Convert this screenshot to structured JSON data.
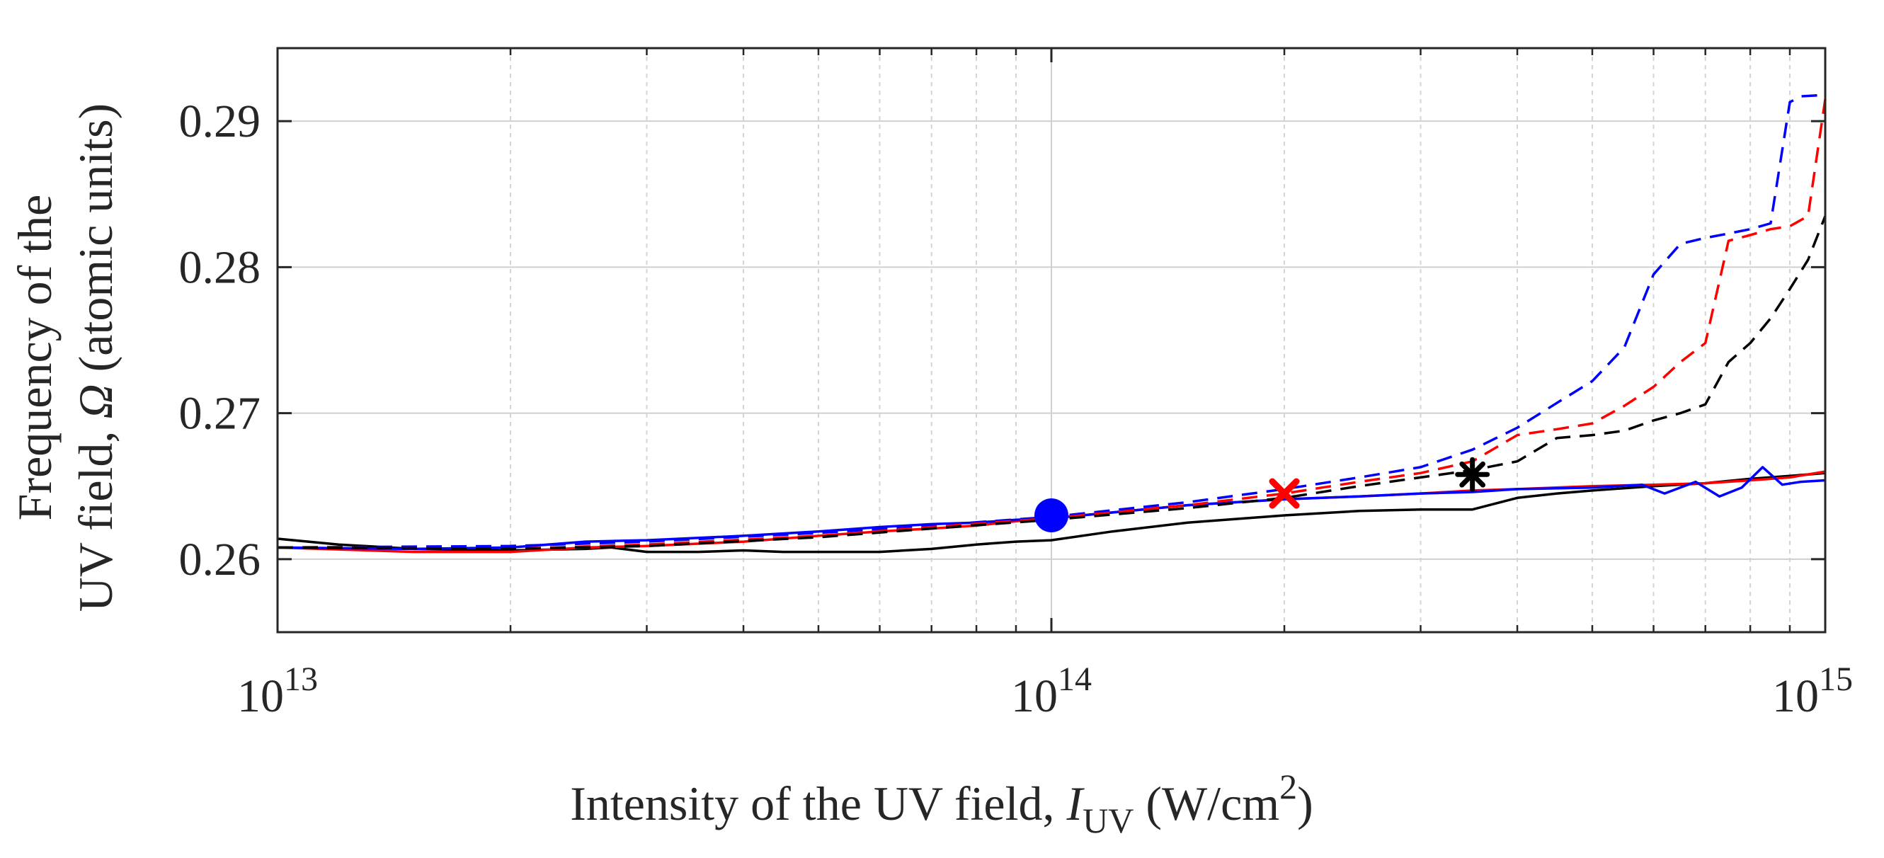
{
  "chart_data": {
    "type": "line",
    "x_scale": "log",
    "xlim": [
      10000000000000.0,
      1000000000000000.0
    ],
    "ylim": [
      0.255,
      0.295
    ],
    "grid": true,
    "xlabel": {
      "prefix": "Intensity of the UV field, ",
      "italic": "I",
      "subscript": "UV",
      "suffix_open": " (W/cm",
      "superscript": "2",
      "suffix_close": ")"
    },
    "ylabel": {
      "line1": "Frequency of the",
      "line2_prefix": "UV field, ",
      "symbol": "Ω",
      "line2_suffix": " (atomic units)"
    },
    "x_ticks": [
      {
        "value": 10000000000000.0,
        "base": "10",
        "exp": "13"
      },
      {
        "value": 100000000000000.0,
        "base": "10",
        "exp": "14"
      },
      {
        "value": 1000000000000000.0,
        "base": "10",
        "exp": "15"
      }
    ],
    "y_ticks": [
      {
        "value": 0.26,
        "label": "0.26"
      },
      {
        "value": 0.27,
        "label": "0.27"
      },
      {
        "value": 0.28,
        "label": "0.28"
      },
      {
        "value": 0.29,
        "label": "0.29"
      }
    ],
    "series": [
      {
        "name": "black-solid",
        "color": "#000000",
        "dash": "solid",
        "x": [
          10000000000000.0,
          12000000000000.0,
          15000000000000.0,
          20000000000000.0,
          25000000000000.0,
          27000000000000.0,
          30000000000000.0,
          35000000000000.0,
          40000000000000.0,
          45000000000000.0,
          50000000000000.0,
          60000000000000.0,
          70000000000000.0,
          80000000000000.0,
          90000000000000.0,
          100000000000000.0,
          120000000000000.0,
          150000000000000.0,
          200000000000000.0,
          250000000000000.0,
          300000000000000.0,
          350000000000000.0,
          400000000000000.0,
          450000000000000.0,
          500000000000000.0,
          600000000000000.0,
          700000000000000.0,
          800000000000000.0,
          900000000000000.0,
          1000000000000000.0
        ],
        "y": [
          0.2614,
          0.261,
          0.2607,
          0.2606,
          0.2607,
          0.2608,
          0.2605,
          0.2605,
          0.2606,
          0.2605,
          0.2605,
          0.2605,
          0.2607,
          0.261,
          0.2612,
          0.2613,
          0.2619,
          0.2625,
          0.263,
          0.2633,
          0.2634,
          0.2634,
          0.2642,
          0.2645,
          0.2647,
          0.265,
          0.2652,
          0.2655,
          0.2657,
          0.2659
        ]
      },
      {
        "name": "red-solid",
        "color": "#ff0000",
        "dash": "solid",
        "x": [
          10000000000000.0,
          15000000000000.0,
          20000000000000.0,
          25000000000000.0,
          30000000000000.0,
          40000000000000.0,
          50000000000000.0,
          60000000000000.0,
          70000000000000.0,
          80000000000000.0,
          90000000000000.0,
          100000000000000.0,
          120000000000000.0,
          150000000000000.0,
          200000000000000.0,
          250000000000000.0,
          300000000000000.0,
          350000000000000.0,
          400000000000000.0,
          500000000000000.0,
          600000000000000.0,
          700000000000000.0,
          800000000000000.0,
          900000000000000.0,
          1000000000000000.0
        ],
        "y": [
          0.2608,
          0.2605,
          0.2605,
          0.2608,
          0.2609,
          0.2612,
          0.2616,
          0.2619,
          0.2621,
          0.2623,
          0.2626,
          0.2628,
          0.2632,
          0.2637,
          0.2641,
          0.2643,
          0.2645,
          0.2647,
          0.2648,
          0.265,
          0.2651,
          0.2652,
          0.2654,
          0.2656,
          0.266
        ]
      },
      {
        "name": "blue-solid",
        "color": "#0000ff",
        "dash": "solid",
        "x": [
          10000000000000.0,
          15000000000000.0,
          20000000000000.0,
          25000000000000.0,
          30000000000000.0,
          40000000000000.0,
          50000000000000.0,
          60000000000000.0,
          70000000000000.0,
          80000000000000.0,
          90000000000000.0,
          100000000000000.0,
          120000000000000.0,
          150000000000000.0,
          200000000000000.0,
          250000000000000.0,
          300000000000000.0,
          350000000000000.0,
          400000000000000.0,
          500000000000000.0,
          580000000000000.0,
          620000000000000.0,
          680000000000000.0,
          730000000000000.0,
          780000000000000.0,
          830000000000000.0,
          880000000000000.0,
          930000000000000.0,
          1000000000000000.0
        ],
        "y": [
          0.2608,
          0.2607,
          0.2608,
          0.2612,
          0.2613,
          0.2616,
          0.2619,
          0.2622,
          0.2624,
          0.2625,
          0.2627,
          0.2628,
          0.2632,
          0.2637,
          0.2641,
          0.2643,
          0.2645,
          0.2646,
          0.2648,
          0.2649,
          0.2651,
          0.2645,
          0.2653,
          0.2643,
          0.2649,
          0.2663,
          0.2651,
          0.2653,
          0.2654
        ]
      },
      {
        "name": "blue-dashed",
        "color": "#0000ff",
        "dash": "dashed",
        "x": [
          10000000000000.0,
          20000000000000.0,
          30000000000000.0,
          50000000000000.0,
          70000000000000.0,
          100000000000000.0,
          150000000000000.0,
          200000000000000.0,
          250000000000000.0,
          300000000000000.0,
          350000000000000.0,
          400000000000000.0,
          450000000000000.0,
          500000000000000.0,
          550000000000000.0,
          600000000000000.0,
          650000000000000.0,
          700000000000000.0,
          750000000000000.0,
          800000000000000.0,
          850000000000000.0,
          900000000000000.0,
          930000000000000.0,
          1000000000000000.0
        ],
        "y": [
          0.2608,
          0.2609,
          0.2612,
          0.2618,
          0.2623,
          0.2629,
          0.2639,
          0.2648,
          0.2656,
          0.2663,
          0.2675,
          0.269,
          0.2707,
          0.2722,
          0.2745,
          0.2795,
          0.2816,
          0.282,
          0.2823,
          0.2826,
          0.283,
          0.2913,
          0.2917,
          0.2918
        ]
      },
      {
        "name": "red-dashed",
        "color": "#ff0000",
        "dash": "dashed",
        "x": [
          10000000000000.0,
          20000000000000.0,
          30000000000000.0,
          50000000000000.0,
          70000000000000.0,
          100000000000000.0,
          150000000000000.0,
          200000000000000.0,
          250000000000000.0,
          300000000000000.0,
          350000000000000.0,
          400000000000000.0,
          450000000000000.0,
          500000000000000.0,
          550000000000000.0,
          600000000000000.0,
          650000000000000.0,
          700000000000000.0,
          750000000000000.0,
          800000000000000.0,
          850000000000000.0,
          900000000000000.0,
          950000000000000.0,
          1000000000000000.0
        ],
        "y": [
          0.2608,
          0.2607,
          0.261,
          0.2616,
          0.2622,
          0.2628,
          0.2637,
          0.2645,
          0.2653,
          0.2659,
          0.2667,
          0.2685,
          0.2689,
          0.2693,
          0.2705,
          0.2718,
          0.2735,
          0.2748,
          0.2818,
          0.2822,
          0.2826,
          0.2828,
          0.2835,
          0.2915
        ]
      },
      {
        "name": "black-dashed",
        "color": "#000000",
        "dash": "dashed",
        "x": [
          10000000000000.0,
          20000000000000.0,
          30000000000000.0,
          50000000000000.0,
          70000000000000.0,
          100000000000000.0,
          150000000000000.0,
          200000000000000.0,
          250000000000000.0,
          300000000000000.0,
          350000000000000.0,
          400000000000000.0,
          450000000000000.0,
          500000000000000.0,
          550000000000000.0,
          600000000000000.0,
          650000000000000.0,
          700000000000000.0,
          750000000000000.0,
          800000000000000.0,
          850000000000000.0,
          900000000000000.0,
          950000000000000.0,
          1000000000000000.0
        ],
        "y": [
          0.2608,
          0.2607,
          0.2609,
          0.2615,
          0.2621,
          0.2627,
          0.2635,
          0.2642,
          0.265,
          0.2656,
          0.2661,
          0.2667,
          0.2683,
          0.2685,
          0.2688,
          0.2695,
          0.27,
          0.2706,
          0.2735,
          0.2748,
          0.2765,
          0.2785,
          0.2805,
          0.2835
        ]
      }
    ],
    "markers": [
      {
        "name": "blue-circle-marker",
        "shape": "circle",
        "color": "#0000ff",
        "x": 100000000000000.0,
        "y": 0.263
      },
      {
        "name": "red-x-marker",
        "shape": "x",
        "color": "#ff0000",
        "x": 200000000000000.0,
        "y": 0.2645
      },
      {
        "name": "black-star-marker",
        "shape": "asterisk",
        "color": "#000000",
        "x": 350000000000000.0,
        "y": 0.2658
      }
    ]
  }
}
